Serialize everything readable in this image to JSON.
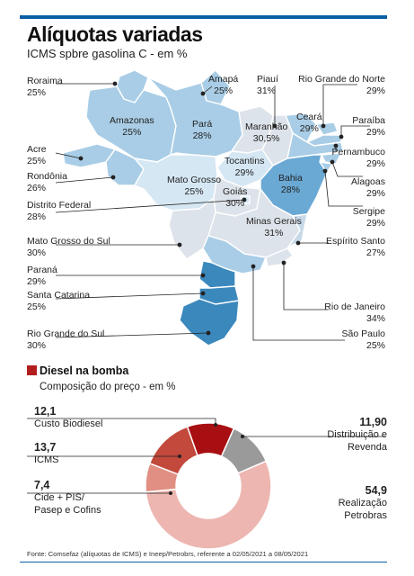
{
  "header": {
    "title": "Alíquotas variadas",
    "subtitle": "ICMS spbre gasolina C - em %"
  },
  "colors": {
    "accent_bar": "#0b5fa5",
    "tier_25_26": "#a9cde6",
    "tier_28_29": "#d5e7f3",
    "tier_30_31": "#dde3ea",
    "tier_27": "#c7d9e8",
    "tier_south": "#3b88bd",
    "bahia": "#6aa9d4",
    "donut_distribuicao": "#9a9a9a",
    "donut_realizacao": "#edb6b0",
    "donut_cide": "#e08f82",
    "donut_icms": "#c2493c",
    "donut_biodiesel": "#a80f12"
  },
  "states": [
    {
      "id": "roraima",
      "name": "Roraima",
      "value": "25%"
    },
    {
      "id": "amazonas",
      "name": "Amazonas",
      "value": "25%"
    },
    {
      "id": "acre",
      "name": "Acre",
      "value": "25%"
    },
    {
      "id": "rondonia",
      "name": "Rondônia",
      "value": "26%"
    },
    {
      "id": "distrito_federal",
      "name": "Distrito Federal",
      "value": "28%"
    },
    {
      "id": "mato_grosso_do_sul",
      "name": "Mato Grosso do Sul",
      "value": "30%"
    },
    {
      "id": "parana",
      "name": "Paraná",
      "value": "29%"
    },
    {
      "id": "santa_catarina",
      "name": "Santa Catarina",
      "value": "25%"
    },
    {
      "id": "rio_grande_do_sul",
      "name": "Rio Grande do Sul",
      "value": "30%"
    },
    {
      "id": "amapa",
      "name": "Amapá",
      "value": "25%"
    },
    {
      "id": "para",
      "name": "Pará",
      "value": "28%"
    },
    {
      "id": "piaui",
      "name": "Piauí",
      "value": "31%"
    },
    {
      "id": "maranhao",
      "name": "Maranhão",
      "value": "30,5%"
    },
    {
      "id": "ceara",
      "name": "Ceará",
      "value": "29%"
    },
    {
      "id": "rio_grande_do_norte",
      "name": "Rio Grande do Norte",
      "value": "29%"
    },
    {
      "id": "paraiba",
      "name": "Paraíba",
      "value": "29%"
    },
    {
      "id": "pernambuco",
      "name": "Pernambuco",
      "value": "29%"
    },
    {
      "id": "alagoas",
      "name": "Alagoas",
      "value": "29%"
    },
    {
      "id": "sergipe",
      "name": "Sergipe",
      "value": "29%"
    },
    {
      "id": "bahia",
      "name": "Bahia",
      "value": "28%"
    },
    {
      "id": "tocantins",
      "name": "Tocantins",
      "value": "29%"
    },
    {
      "id": "mato_grosso",
      "name": "Mato Grosso",
      "value": "25%"
    },
    {
      "id": "goias",
      "name": "Goiás",
      "value": "30%"
    },
    {
      "id": "minas_gerais",
      "name": "Minas Gerais",
      "value": "31%"
    },
    {
      "id": "espirito_santo",
      "name": "Espírito Santo",
      "value": "27%"
    },
    {
      "id": "rio_de_janeiro",
      "name": "Rio de Janeiro",
      "value": "34%"
    },
    {
      "id": "sao_paulo",
      "name": "São Paulo",
      "value": "25%"
    }
  ],
  "diesel": {
    "heading": "Diesel na bomba",
    "subheading": "Composição do preço - em %"
  },
  "chart_data": [
    {
      "type": "table",
      "title": "Alíquotas variadas",
      "subtitle": "ICMS spbre gasolina C - em %",
      "categories": [
        "Roraima",
        "Amazonas",
        "Acre",
        "Rondônia",
        "Distrito Federal",
        "Mato Grosso do Sul",
        "Paraná",
        "Santa Catarina",
        "Rio Grande do Sul",
        "Amapá",
        "Pará",
        "Piauí",
        "Maranhão",
        "Ceará",
        "Rio Grande do Norte",
        "Paraíba",
        "Pernambuco",
        "Alagoas",
        "Sergipe",
        "Bahia",
        "Tocantins",
        "Mato Grosso",
        "Goiás",
        "Minas Gerais",
        "Espírito Santo",
        "Rio de Janeiro",
        "São Paulo"
      ],
      "values": [
        25,
        25,
        25,
        26,
        28,
        30,
        29,
        25,
        30,
        25,
        28,
        31,
        30.5,
        29,
        29,
        29,
        29,
        29,
        29,
        28,
        29,
        25,
        30,
        31,
        27,
        34,
        25
      ]
    },
    {
      "type": "pie",
      "title": "Diesel na bomba",
      "subtitle": "Composição do preço - em %",
      "categories": [
        "Custo Biodiesel",
        "Distribuição e Revenda",
        "Realização Petrobras",
        "Cide + PIS/ Pasep e Cofins",
        "ICMS"
      ],
      "values": [
        12.1,
        11.9,
        54.9,
        7.4,
        13.7
      ],
      "labels": [
        "12,1",
        "11,90",
        "54,9",
        "7,4",
        "13,7"
      ],
      "colors": [
        "#a80f12",
        "#9a9a9a",
        "#edb6b0",
        "#e08f82",
        "#c2493c"
      ]
    }
  ],
  "donut_legend": {
    "biodiesel": {
      "value": "12,1",
      "label": "Custo Biodiesel"
    },
    "icms": {
      "value": "13,7",
      "label": "ICMS"
    },
    "cide": {
      "value": "7,4",
      "label1": "Cide + PIS/",
      "label2": "Pasep e Cofins"
    },
    "distribuicao": {
      "value": "11,90",
      "label1": "Distribuição e",
      "label2": "Revenda"
    },
    "realizacao": {
      "value": "54,9",
      "label1": "Realização",
      "label2": "Petrobras"
    }
  },
  "footer": {
    "source": "Fonte: Comsefaz (alíquotas de ICMS)  e Ineep/Petrobrs, referente a 02/05/2021 a 08/05/2021"
  }
}
